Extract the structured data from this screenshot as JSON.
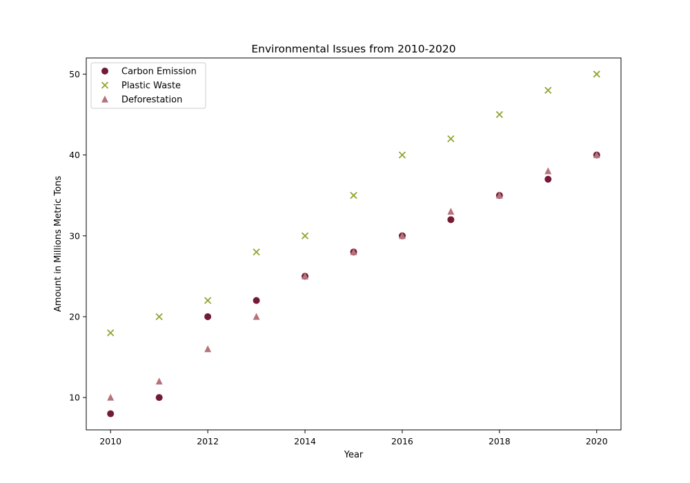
{
  "chart_data": {
    "type": "scatter",
    "title": "Environmental Issues from 2010-2020",
    "xlabel": "Year",
    "ylabel": "Amount in Millions Metric Tons",
    "x": [
      2010,
      2011,
      2012,
      2013,
      2014,
      2015,
      2016,
      2017,
      2018,
      2019,
      2020
    ],
    "xlim": [
      2009.5,
      2020.5
    ],
    "ylim": [
      6,
      52
    ],
    "xticks": [
      2010,
      2012,
      2014,
      2016,
      2018,
      2020
    ],
    "yticks": [
      10,
      20,
      30,
      40,
      50
    ],
    "grid": false,
    "legend_position": "upper-left",
    "series": [
      {
        "name": "Carbon Emission",
        "marker": "circle",
        "color": "#731a35",
        "values": [
          8,
          10,
          20,
          22,
          25,
          28,
          30,
          32,
          35,
          37,
          40
        ]
      },
      {
        "name": "Plastic Waste",
        "marker": "x",
        "color": "#8fa52e",
        "values": [
          18,
          20,
          22,
          28,
          30,
          35,
          40,
          42,
          45,
          48,
          50
        ]
      },
      {
        "name": "Deforestation",
        "marker": "triangle",
        "color": "#b5737a",
        "values": [
          10,
          12,
          16,
          20,
          25,
          28,
          30,
          33,
          35,
          38,
          40
        ]
      }
    ]
  }
}
